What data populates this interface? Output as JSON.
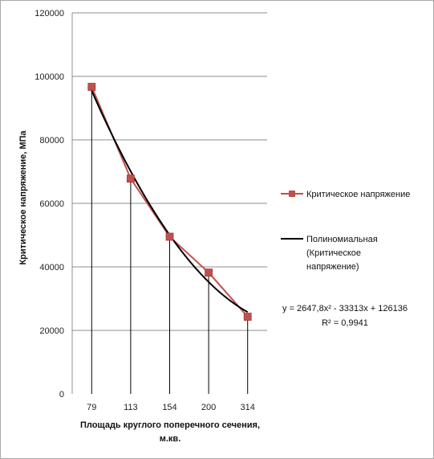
{
  "chart_data": {
    "type": "line",
    "categories": [
      "79",
      "113",
      "154",
      "200",
      "314"
    ],
    "series": [
      {
        "name": "Критическое напряжение",
        "values": [
          96700,
          67800,
          49500,
          38200,
          24300
        ],
        "color": "#c0504d",
        "marker": "square"
      },
      {
        "name_lines": [
          "Полиномиальная",
          "(Критическое",
          "напряжение)"
        ],
        "kind": "poly2-trend",
        "coefficients": [
          2647.8,
          -33313,
          126136
        ],
        "color": "#000000"
      }
    ],
    "ylabel": "Критическое напряжение, МПа",
    "xlabel_lines": [
      "Площадь круглого поперечного сечения,",
      "м.кв."
    ],
    "ylim": [
      0,
      120000
    ],
    "yticks": [
      0,
      20000,
      40000,
      60000,
      80000,
      100000,
      120000
    ],
    "grid": "horizontal",
    "drop_lines": true,
    "legend_position": "right",
    "equation": "y = 2647,8x² - 33313x + 126136",
    "r_squared": "R² = 0,9941"
  }
}
